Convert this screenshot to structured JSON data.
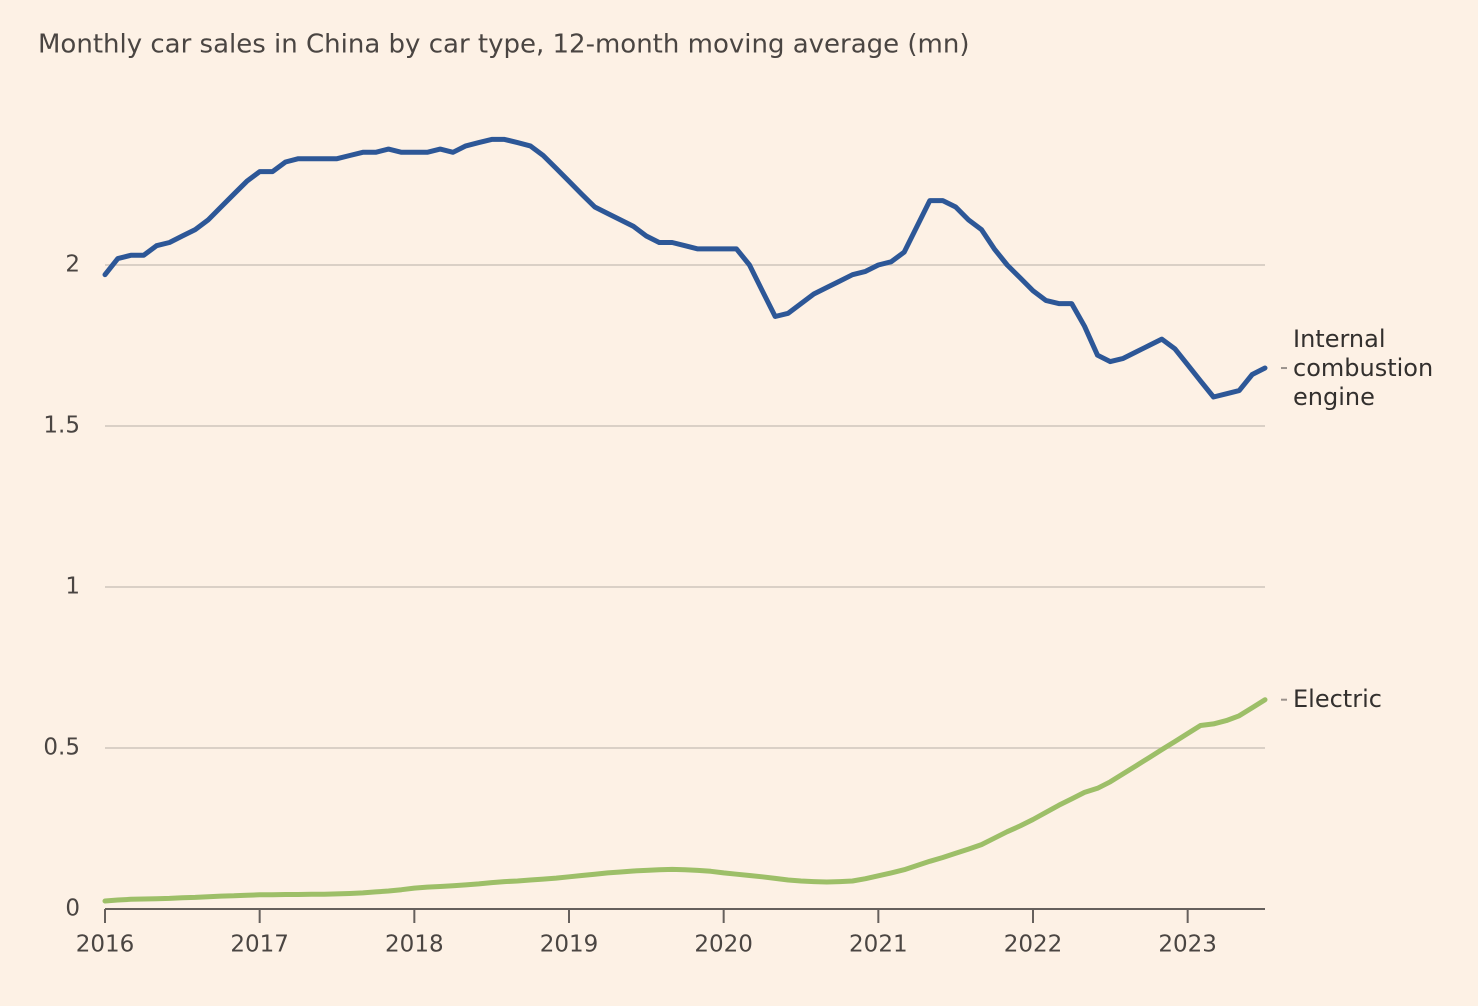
{
  "chart_data": {
    "type": "line",
    "title": "Monthly car sales in China by car type, 12-month moving average (mn)",
    "x": [
      2016,
      2016.083,
      2016.167,
      2016.25,
      2016.333,
      2016.417,
      2016.5,
      2016.583,
      2016.667,
      2016.75,
      2016.833,
      2016.917,
      2017,
      2017.083,
      2017.167,
      2017.25,
      2017.333,
      2017.417,
      2017.5,
      2017.583,
      2017.667,
      2017.75,
      2017.833,
      2017.917,
      2018,
      2018.083,
      2018.167,
      2018.25,
      2018.333,
      2018.417,
      2018.5,
      2018.583,
      2018.667,
      2018.75,
      2018.833,
      2018.917,
      2019,
      2019.083,
      2019.167,
      2019.25,
      2019.333,
      2019.417,
      2019.5,
      2019.583,
      2019.667,
      2019.75,
      2019.833,
      2019.917,
      2020,
      2020.083,
      2020.167,
      2020.25,
      2020.333,
      2020.417,
      2020.5,
      2020.583,
      2020.667,
      2020.75,
      2020.833,
      2020.917,
      2021,
      2021.083,
      2021.167,
      2021.25,
      2021.333,
      2021.417,
      2021.5,
      2021.583,
      2021.667,
      2021.75,
      2021.833,
      2021.917,
      2022,
      2022.083,
      2022.167,
      2022.25,
      2022.333,
      2022.417,
      2022.5,
      2022.583,
      2022.667,
      2022.75,
      2022.833,
      2022.917,
      2023,
      2023.083,
      2023.167,
      2023.25,
      2023.333,
      2023.417,
      2023.5
    ],
    "series": [
      {
        "name": "Internal combustion engine",
        "color": "#2d5797",
        "values": [
          1.97,
          2.02,
          2.03,
          2.03,
          2.06,
          2.07,
          2.09,
          2.11,
          2.14,
          2.18,
          2.22,
          2.26,
          2.29,
          2.29,
          2.32,
          2.33,
          2.33,
          2.33,
          2.33,
          2.34,
          2.35,
          2.35,
          2.36,
          2.35,
          2.35,
          2.35,
          2.36,
          2.35,
          2.37,
          2.38,
          2.39,
          2.39,
          2.38,
          2.37,
          2.34,
          2.3,
          2.26,
          2.22,
          2.18,
          2.16,
          2.14,
          2.12,
          2.09,
          2.07,
          2.07,
          2.06,
          2.05,
          2.05,
          2.05,
          2.05,
          2,
          1.92,
          1.84,
          1.85,
          1.88,
          1.91,
          1.93,
          1.95,
          1.97,
          1.98,
          2,
          2.01,
          2.04,
          2.12,
          2.2,
          2.2,
          2.18,
          2.14,
          2.11,
          2.05,
          2,
          1.96,
          1.92,
          1.89,
          1.88,
          1.88,
          1.81,
          1.72,
          1.7,
          1.71,
          1.73,
          1.75,
          1.77,
          1.74,
          1.69,
          1.64,
          1.59,
          1.6,
          1.61,
          1.66,
          1.68
        ]
      },
      {
        "name": "Electric",
        "color": "#9dbf68",
        "values": [
          0.025,
          0.028,
          0.03,
          0.031,
          0.032,
          0.033,
          0.035,
          0.036,
          0.038,
          0.04,
          0.041,
          0.043,
          0.044,
          0.044,
          0.045,
          0.045,
          0.046,
          0.046,
          0.047,
          0.048,
          0.05,
          0.053,
          0.056,
          0.06,
          0.065,
          0.068,
          0.07,
          0.072,
          0.075,
          0.078,
          0.082,
          0.085,
          0.087,
          0.09,
          0.093,
          0.096,
          0.1,
          0.104,
          0.108,
          0.112,
          0.115,
          0.118,
          0.12,
          0.122,
          0.123,
          0.122,
          0.12,
          0.117,
          0.112,
          0.108,
          0.104,
          0.1,
          0.095,
          0.09,
          0.087,
          0.085,
          0.084,
          0.085,
          0.087,
          0.094,
          0.103,
          0.112,
          0.122,
          0.135,
          0.148,
          0.16,
          0.173,
          0.186,
          0.2,
          0.22,
          0.24,
          0.258,
          0.278,
          0.3,
          0.322,
          0.342,
          0.362,
          0.375,
          0.395,
          0.42,
          0.445,
          0.47,
          0.495,
          0.52,
          0.545,
          0.57,
          0.575,
          0.585,
          0.6,
          0.625,
          0.65
        ]
      }
    ],
    "xlim": [
      2016,
      2023.5
    ],
    "xticks": [
      2016,
      2017,
      2018,
      2019,
      2020,
      2021,
      2022,
      2023
    ],
    "ylim": [
      0,
      2.5
    ],
    "yticks": [
      0,
      0.5,
      1,
      1.5,
      2
    ],
    "grid": true
  }
}
